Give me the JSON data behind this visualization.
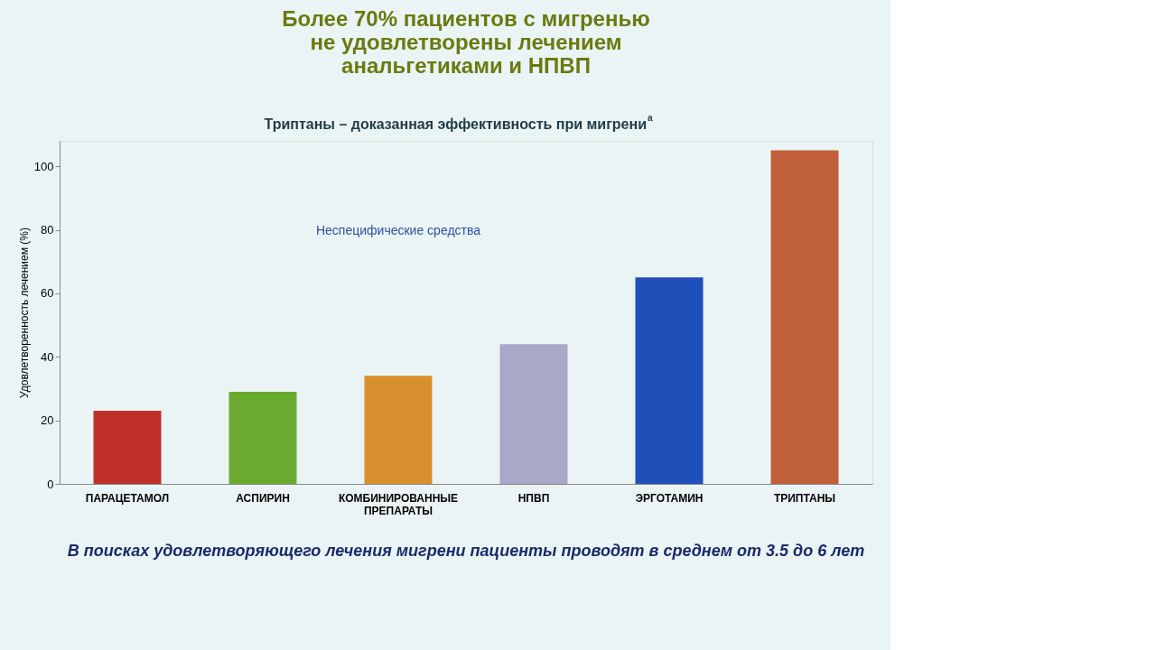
{
  "chart_data": {
    "type": "bar",
    "title": "Более 70% пациентов с мигренью\nне удовлетворены лечением\nанальгетиками и НПВП",
    "subtitle": "Триптаны – доказанная эффективность при мигрени$^{a}$",
    "ylabel": "Удовлетворенность лечением (%)",
    "categories": [
      "ПАРАЦЕТАМОЛ",
      "АСПИРИН",
      "КОМБИНИРОВАННЫЕ ПРЕПАРАТЫ",
      "НПВП",
      "ЭРГОТАМИН",
      "ТРИПТАНЫ"
    ],
    "values": [
      23,
      29,
      34,
      44,
      65,
      105
    ],
    "colors": [
      "#c0302a",
      "#6aaa30",
      "#d8902e",
      "#a8a8c8",
      "#1f4fb8",
      "#c0603a"
    ],
    "ylim": [
      0,
      108
    ],
    "yticks": [
      0,
      20,
      40,
      60,
      80,
      100
    ],
    "grid": false,
    "annotations": [
      "Неспецифические средства",
      "В поисках удовлетворяющего лечения мигрени пациенты проводят в среднем от 3.5 до 6 лет"
    ]
  }
}
